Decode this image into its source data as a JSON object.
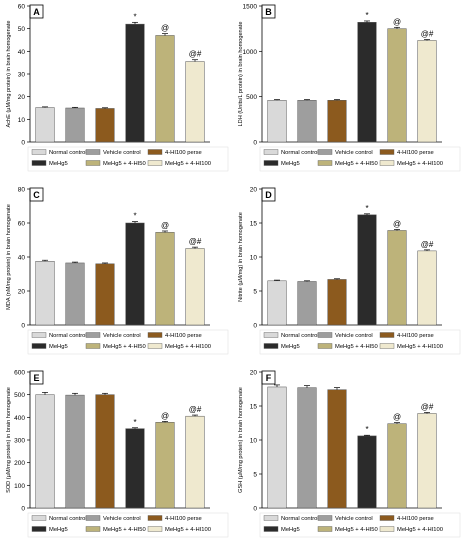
{
  "colors": {
    "Normal control": "#d9d9d9",
    "Vehicle control": "#9e9e9e",
    "4-HI100 perse": "#8c5a1e",
    "MeHg5": "#2b2b2b",
    "MeHg5 + 4-HI50": "#bdb37a",
    "MeHg5 + 4-HI100": "#efe9cf"
  },
  "chart_data": [
    {
      "type": "bar",
      "panel": "A",
      "ylabel": "AchE (µM/mg protein) in brain homogenate",
      "ylim": [
        0,
        60
      ],
      "yticks": [
        0,
        10,
        20,
        30,
        40,
        50,
        60
      ],
      "categories": [
        "Normal control",
        "Vehicle control",
        "4-HI100 perse",
        "MeHg5",
        "MeHg5 + 4-HI50",
        "MeHg5 + 4-HI100"
      ],
      "values": [
        15.2,
        15.0,
        14.8,
        52.0,
        47.0,
        35.5
      ],
      "errors": [
        0.3,
        0.3,
        0.3,
        0.8,
        0.8,
        0.8
      ],
      "annotations": [
        "",
        "",
        "",
        "*",
        "@",
        "@#"
      ],
      "legend": [
        "Normal control",
        "Vehicle control",
        "4-HI100 perse",
        "MeHg5",
        "MeHg5 + 4-HI50",
        "MeHg5 + 4-HI100"
      ]
    },
    {
      "type": "bar",
      "panel": "B",
      "ylabel": "LDH (Units/L protein) in brain homogenate",
      "ylim": [
        0,
        1500
      ],
      "yticks": [
        0,
        500,
        1000,
        1500
      ],
      "categories": [
        "Normal control",
        "Vehicle control",
        "4-HI100 perse",
        "MeHg5",
        "MeHg5 + 4-HI50",
        "MeHg5 + 4-HI100"
      ],
      "values": [
        460,
        460,
        460,
        1320,
        1250,
        1120
      ],
      "errors": [
        8,
        8,
        8,
        15,
        15,
        10
      ],
      "annotations": [
        "",
        "",
        "",
        "*",
        "@",
        "@#"
      ],
      "legend": [
        "Normal control",
        "Vehicle control",
        "4-HI100 perse",
        "MeHg5",
        "MeHg5 + 4-HI50",
        "MeHg5 + 4-HI100"
      ]
    },
    {
      "type": "bar",
      "panel": "C",
      "ylabel": "MDA (nM/mg protein) in brain homogenate",
      "ylim": [
        0,
        80
      ],
      "yticks": [
        0,
        20,
        40,
        60,
        80
      ],
      "categories": [
        "Normal control",
        "Vehicle control",
        "4-HI100 perse",
        "MeHg5",
        "MeHg5 + 4-HI50",
        "MeHg5 + 4-HI100"
      ],
      "values": [
        37.5,
        36.5,
        36.0,
        60.0,
        54.5,
        45.0
      ],
      "errors": [
        0.6,
        0.5,
        0.5,
        0.8,
        0.8,
        0.8
      ],
      "annotations": [
        "",
        "",
        "",
        "*",
        "@",
        "@#"
      ],
      "legend": [
        "Normal control",
        "Vehicle control",
        "4-HI100 perse",
        "MeHg5",
        "MeHg5 + 4-HI50",
        "MeHg5 + 4-HI100"
      ]
    },
    {
      "type": "bar",
      "panel": "D",
      "ylabel": "Nitrite (µM/mg) in brain homogenate",
      "ylim": [
        0,
        20
      ],
      "yticks": [
        0,
        5,
        10,
        15,
        20
      ],
      "categories": [
        "Normal control",
        "Vehicle control",
        "4-HI100 perse",
        "MeHg5",
        "MeHg5 + 4-HI50",
        "MeHg5 + 4-HI100"
      ],
      "values": [
        6.5,
        6.4,
        6.7,
        16.2,
        13.9,
        10.9
      ],
      "errors": [
        0.1,
        0.1,
        0.1,
        0.15,
        0.15,
        0.15
      ],
      "annotations": [
        "",
        "",
        "",
        "*",
        "@",
        "@#"
      ],
      "legend": [
        "Normal control",
        "Vehicle control",
        "4-HI100 perse",
        "MeHg5",
        "MeHg5 + 4-HI50",
        "MeHg5 + 4-HI100"
      ]
    },
    {
      "type": "bar",
      "panel": "E",
      "ylabel": "SOD (µM/mg protein) in brain homogenate",
      "ylim": [
        0,
        600
      ],
      "yticks": [
        0,
        100,
        200,
        300,
        400,
        500,
        600
      ],
      "categories": [
        "Normal control",
        "Vehicle control",
        "4-HI100 perse",
        "MeHg5",
        "MeHg5 + 4-HI50",
        "MeHg5 + 4-HI100"
      ],
      "values": [
        500,
        498,
        500,
        350,
        378,
        405
      ],
      "errors": [
        10,
        8,
        6,
        4,
        4,
        5
      ],
      "annotations": [
        "",
        "",
        "",
        "*",
        "@",
        "@#"
      ],
      "legend": [
        "Normal control",
        "Vehicle control",
        "4-HI100 perse",
        "MeHg5",
        "MeHg5 + 4-HI50",
        "MeHg5 + 4-HI100"
      ]
    },
    {
      "type": "bar",
      "panel": "F",
      "ylabel": "GSH (µM/mg protein) in brain homogenate",
      "ylim": [
        0,
        20
      ],
      "yticks": [
        0,
        5,
        10,
        15,
        20
      ],
      "categories": [
        "Normal control",
        "Vehicle control",
        "4-HI100 perse",
        "MeHg5",
        "MeHg5 + 4-HI50",
        "MeHg5 + 4-HI100"
      ],
      "values": [
        17.8,
        17.7,
        17.4,
        10.6,
        12.4,
        13.9
      ],
      "errors": [
        0.3,
        0.3,
        0.3,
        0.1,
        0.15,
        0.15
      ],
      "annotations": [
        "",
        "",
        "",
        "*",
        "@",
        "@#"
      ],
      "legend": [
        "Normal control",
        "Vehicle control",
        "4-HI100 perse",
        "MeHg5",
        "MeHg5 + 4-HI50",
        "MeHg5 + 4-HI100"
      ]
    }
  ]
}
